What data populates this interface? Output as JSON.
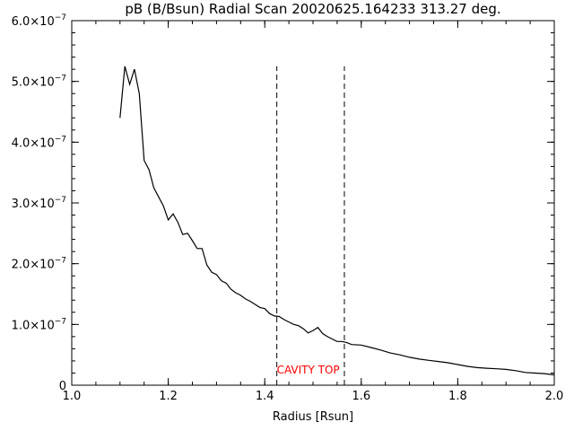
{
  "chart_data": {
    "type": "line",
    "title": "pB (B/Bsun) Radial Scan 20020625.164233 313.27 deg.",
    "xlabel": "Radius [Rsun]",
    "ylabel": "",
    "xlim": [
      1.0,
      2.0
    ],
    "ylim": [
      0,
      6e-07
    ],
    "x_ticks": [
      1.0,
      1.2,
      1.4,
      1.6,
      1.8,
      2.0
    ],
    "x_tick_labels": [
      "1.0",
      "1.2",
      "1.4",
      "1.6",
      "1.8",
      "2.0"
    ],
    "y_ticks": [
      0,
      1e-07,
      2e-07,
      3e-07,
      4e-07,
      5e-07,
      6e-07
    ],
    "y_tick_labels": [
      {
        "mantissa": "0",
        "exp": ""
      },
      {
        "mantissa": "1.0×10",
        "exp": "−7"
      },
      {
        "mantissa": "2.0×10",
        "exp": "−7"
      },
      {
        "mantissa": "3.0×10",
        "exp": "−7"
      },
      {
        "mantissa": "4.0×10",
        "exp": "−7"
      },
      {
        "mantissa": "5.0×10",
        "exp": "−7"
      },
      {
        "mantissa": "6.0×10",
        "exp": "−7"
      }
    ],
    "annotation": {
      "text": "CAVITY TOP",
      "color": "#ff0000",
      "x": 1.49,
      "y": 2.5e-08
    },
    "vlines": [
      {
        "x": 1.425,
        "y0": 0,
        "y1": 5.25e-07,
        "style": "dashed"
      },
      {
        "x": 1.565,
        "y0": 0,
        "y1": 5.25e-07,
        "style": "dashed"
      }
    ],
    "series": [
      {
        "color": "#000000",
        "x": [
          1.1,
          1.11,
          1.12,
          1.13,
          1.14,
          1.15,
          1.16,
          1.17,
          1.18,
          1.19,
          1.2,
          1.21,
          1.22,
          1.23,
          1.24,
          1.25,
          1.26,
          1.27,
          1.28,
          1.29,
          1.3,
          1.31,
          1.32,
          1.33,
          1.34,
          1.35,
          1.36,
          1.37,
          1.38,
          1.39,
          1.4,
          1.41,
          1.42,
          1.43,
          1.44,
          1.45,
          1.46,
          1.47,
          1.48,
          1.49,
          1.5,
          1.51,
          1.52,
          1.53,
          1.54,
          1.55,
          1.56,
          1.57,
          1.58,
          1.6,
          1.62,
          1.64,
          1.66,
          1.68,
          1.7,
          1.72,
          1.74,
          1.76,
          1.78,
          1.8,
          1.82,
          1.84,
          1.86,
          1.88,
          1.9,
          1.92,
          1.94,
          1.96,
          1.98,
          2.0
        ],
        "y": [
          4.4e-07,
          5.25e-07,
          4.95e-07,
          5.2e-07,
          4.8e-07,
          3.7e-07,
          3.55e-07,
          3.25e-07,
          3.1e-07,
          2.95e-07,
          2.72e-07,
          2.82e-07,
          2.68e-07,
          2.48e-07,
          2.5e-07,
          2.38e-07,
          2.25e-07,
          2.25e-07,
          1.98e-07,
          1.86e-07,
          1.82e-07,
          1.72e-07,
          1.68e-07,
          1.58e-07,
          1.52e-07,
          1.48e-07,
          1.42e-07,
          1.38e-07,
          1.33e-07,
          1.28e-07,
          1.26e-07,
          1.18e-07,
          1.14e-07,
          1.13e-07,
          1.08e-07,
          1.04e-07,
          1e-07,
          9.8e-08,
          9.3e-08,
          8.6e-08,
          9e-08,
          9.5e-08,
          8.5e-08,
          8e-08,
          7.6e-08,
          7.2e-08,
          7.2e-08,
          7e-08,
          6.7e-08,
          6.6e-08,
          6.2e-08,
          5.8e-08,
          5.3e-08,
          5e-08,
          4.6e-08,
          4.3e-08,
          4.1e-08,
          3.9e-08,
          3.7e-08,
          3.4e-08,
          3.1e-08,
          2.9e-08,
          2.8e-08,
          2.7e-08,
          2.6e-08,
          2.4e-08,
          2.1e-08,
          2e-08,
          1.9e-08,
          1.7e-08
        ]
      }
    ],
    "grid": false,
    "legend": "none"
  }
}
